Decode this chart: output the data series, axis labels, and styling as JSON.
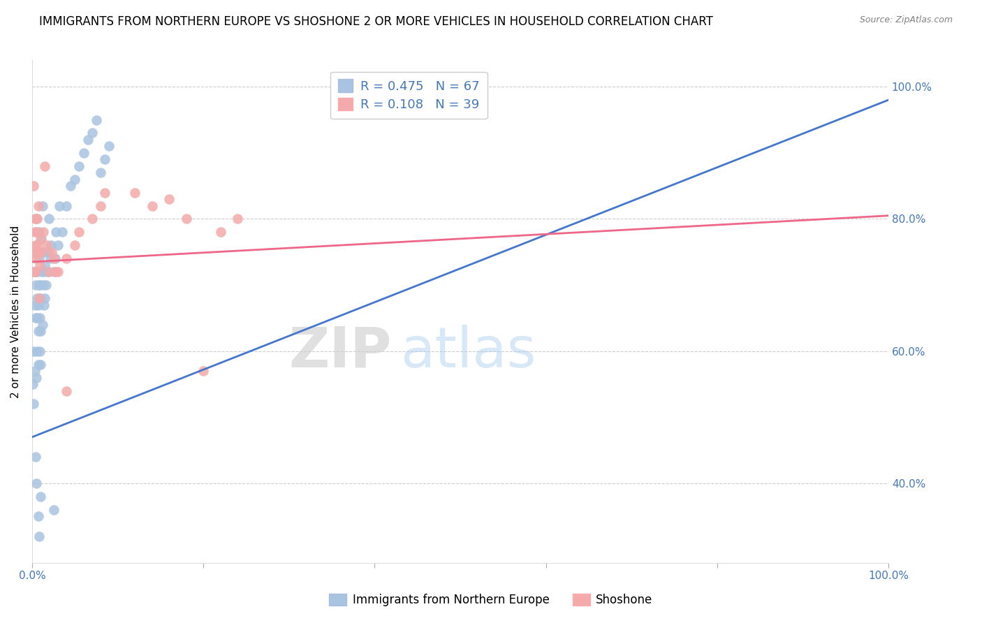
{
  "title": "IMMIGRANTS FROM NORTHERN EUROPE VS SHOSHONE 2 OR MORE VEHICLES IN HOUSEHOLD CORRELATION CHART",
  "source": "Source: ZipAtlas.com",
  "ylabel": "2 or more Vehicles in Household",
  "watermark": "ZIPatlas",
  "legend_blue_r": "R = 0.475",
  "legend_blue_n": "N = 67",
  "legend_pink_r": "R = 0.108",
  "legend_pink_n": "N = 39",
  "blue_color": "#A8C4E0",
  "pink_color": "#F4AAAA",
  "blue_line_color": "#4477CC",
  "pink_line_color": "#EE6688",
  "blue_points_x": [
    0.001,
    0.002,
    0.003,
    0.003,
    0.004,
    0.004,
    0.005,
    0.005,
    0.005,
    0.006,
    0.006,
    0.006,
    0.006,
    0.007,
    0.007,
    0.007,
    0.008,
    0.008,
    0.008,
    0.009,
    0.009,
    0.009,
    0.009,
    0.01,
    0.01,
    0.01,
    0.011,
    0.011,
    0.012,
    0.012,
    0.013,
    0.013,
    0.014,
    0.014,
    0.015,
    0.015,
    0.016,
    0.018,
    0.019,
    0.02,
    0.021,
    0.022,
    0.025,
    0.027,
    0.028,
    0.03,
    0.032,
    0.035,
    0.04,
    0.045,
    0.05,
    0.055,
    0.06,
    0.065,
    0.07,
    0.075,
    0.08,
    0.085,
    0.09,
    0.002,
    0.003,
    0.004,
    0.005,
    0.007,
    0.008,
    0.01,
    0.025
  ],
  "blue_points_y": [
    0.55,
    0.6,
    0.67,
    0.72,
    0.65,
    0.7,
    0.75,
    0.8,
    0.56,
    0.6,
    0.65,
    0.68,
    0.72,
    0.58,
    0.63,
    0.67,
    0.7,
    0.74,
    0.78,
    0.6,
    0.65,
    0.7,
    0.75,
    0.58,
    0.63,
    0.68,
    0.72,
    0.77,
    0.82,
    0.64,
    0.7,
    0.75,
    0.67,
    0.72,
    0.68,
    0.73,
    0.7,
    0.72,
    0.75,
    0.8,
    0.74,
    0.76,
    0.72,
    0.74,
    0.78,
    0.76,
    0.82,
    0.78,
    0.82,
    0.85,
    0.86,
    0.88,
    0.9,
    0.92,
    0.93,
    0.95,
    0.87,
    0.89,
    0.91,
    0.52,
    0.57,
    0.44,
    0.4,
    0.35,
    0.32,
    0.38,
    0.36
  ],
  "pink_points_x": [
    0.001,
    0.002,
    0.003,
    0.003,
    0.004,
    0.004,
    0.005,
    0.005,
    0.006,
    0.006,
    0.007,
    0.007,
    0.008,
    0.009,
    0.01,
    0.011,
    0.013,
    0.015,
    0.017,
    0.02,
    0.023,
    0.025,
    0.03,
    0.04,
    0.05,
    0.055,
    0.07,
    0.08,
    0.085,
    0.12,
    0.14,
    0.16,
    0.18,
    0.2,
    0.22,
    0.24,
    0.028,
    0.04,
    0.002
  ],
  "pink_points_y": [
    0.72,
    0.75,
    0.78,
    0.8,
    0.76,
    0.72,
    0.78,
    0.74,
    0.8,
    0.76,
    0.82,
    0.75,
    0.68,
    0.73,
    0.77,
    0.75,
    0.78,
    0.88,
    0.76,
    0.72,
    0.75,
    0.74,
    0.72,
    0.74,
    0.76,
    0.78,
    0.8,
    0.82,
    0.84,
    0.84,
    0.82,
    0.83,
    0.8,
    0.57,
    0.78,
    0.8,
    0.72,
    0.54,
    0.85
  ],
  "blue_line_x0": 0.0,
  "blue_line_x1": 1.0,
  "blue_line_y0": 0.47,
  "blue_line_y1": 0.98,
  "pink_line_x0": 0.0,
  "pink_line_x1": 1.0,
  "pink_line_y0": 0.735,
  "pink_line_y1": 0.805,
  "xlim": [
    0.0,
    1.0
  ],
  "ylim": [
    0.28,
    1.04
  ],
  "ytick_values": [
    1.0,
    0.8,
    0.6,
    0.4
  ],
  "ytick_labels": [
    "100.0%",
    "80.0%",
    "60.0%",
    "40.0%"
  ],
  "grid_color": "#CCCCCC",
  "background_color": "#FFFFFF",
  "title_fontsize": 12,
  "axis_label_fontsize": 11,
  "tick_fontsize": 11
}
